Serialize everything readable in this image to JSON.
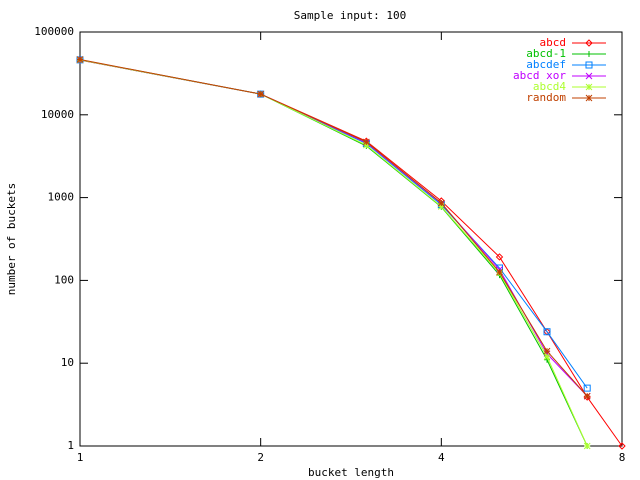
{
  "chart_data": {
    "type": "line",
    "title": "Sample input: 100",
    "x_label": "bucket length",
    "y_label": "number of buckets",
    "x": [
      1,
      2,
      3,
      4,
      5,
      6,
      7,
      8
    ],
    "xlog": true,
    "ylog": true,
    "xlim": [
      1,
      8
    ],
    "ylim": [
      1,
      100000
    ],
    "xticks": [
      1,
      2,
      4,
      8
    ],
    "yticks": [
      1,
      10,
      100,
      1000,
      10000,
      100000
    ],
    "legend": "top-right",
    "series": [
      {
        "name": "abcd",
        "color": "#ff0000",
        "marker": "diamond",
        "values": [
          45700,
          17800,
          4800,
          910,
          192,
          24,
          3.9,
          1
        ]
      },
      {
        "name": "abcd-1",
        "color": "#00c000",
        "marker": "plus",
        "values": [
          46000,
          17800,
          4200,
          770,
          116,
          11,
          1,
          null
        ]
      },
      {
        "name": "abcdef",
        "color": "#0080ff",
        "marker": "square",
        "values": [
          46000,
          17800,
          4500,
          820,
          141,
          24,
          5,
          null
        ]
      },
      {
        "name": "abcd xor",
        "color": "#c000ff",
        "marker": "cross",
        "values": [
          46000,
          17800,
          4600,
          850,
          135,
          13,
          4,
          null
        ]
      },
      {
        "name": "abcd4",
        "color": "#adff2f",
        "marker": "star",
        "values": [
          46000,
          17800,
          4300,
          780,
          123,
          12,
          1,
          null
        ]
      },
      {
        "name": "random",
        "color": "#c04000",
        "marker": "star",
        "values": [
          46500,
          17800,
          4700,
          860,
          126,
          14,
          4,
          null
        ]
      }
    ]
  }
}
